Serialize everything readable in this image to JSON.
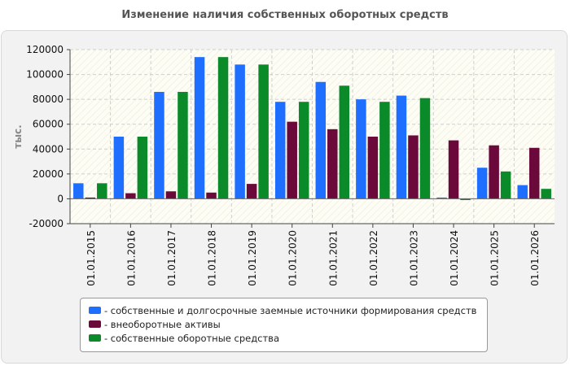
{
  "chart_data": {
    "type": "bar",
    "title": "Изменение наличия собственных оборотных средств",
    "ylabel": "тыс.",
    "xlabel": "",
    "ylim": [
      -20000,
      120000
    ],
    "yticks": [
      -20000,
      0,
      20000,
      40000,
      60000,
      80000,
      100000,
      120000
    ],
    "grid": true,
    "legend_position": "bottom",
    "categories": [
      "01.01.2015",
      "01.01.2016",
      "01.01.2017",
      "01.01.2018",
      "01.01.2019",
      "01.01.2020",
      "01.01.2021",
      "01.01.2022",
      "01.01.2023",
      "01.01.2024",
      "01.01.2025",
      "01.01.2026"
    ],
    "series": [
      {
        "name": "- собственные и долгосрочные заемные источники формирования средств",
        "color": "#1e6fff",
        "values": [
          12500,
          50000,
          86000,
          114000,
          108000,
          78000,
          94000,
          80000,
          83000,
          1000,
          25000,
          11000
        ]
      },
      {
        "name": "- внеоборотные активы",
        "color": "#6b0a3a",
        "values": [
          1000,
          4500,
          6000,
          5000,
          12000,
          62000,
          56000,
          50000,
          51000,
          47000,
          43000,
          41000
        ]
      },
      {
        "name": "- собственные оборотные средства",
        "color": "#0b8a2a",
        "values": [
          12500,
          50000,
          86000,
          114000,
          108000,
          78000,
          91000,
          78000,
          81000,
          -1000,
          22000,
          8000
        ]
      }
    ]
  }
}
